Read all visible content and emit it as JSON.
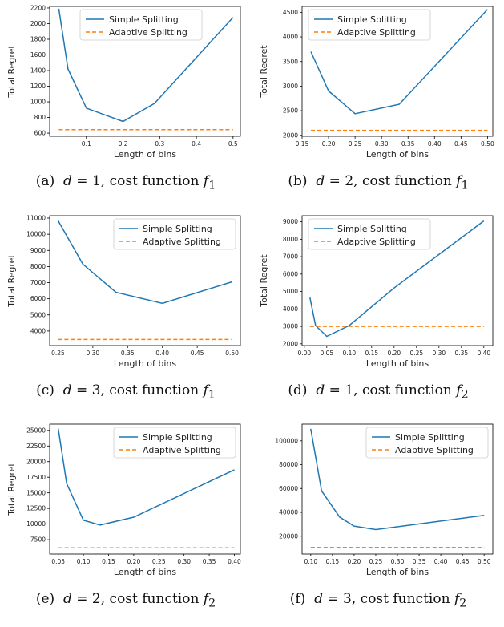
{
  "colors": {
    "simple": "#1f77b4",
    "adaptive": "#ff7f0e"
  },
  "chart_data": [
    {
      "type": "line",
      "caption": {
        "label": "(a)",
        "dim": "d",
        "dim_value": "1",
        "suffix": "cost function",
        "func": "f",
        "func_sub": "1"
      },
      "xlabel": "Length of bins",
      "ylabel": "Total Regret",
      "xlim": [
        0.0,
        0.52
      ],
      "ylim": [
        560,
        2220
      ],
      "xticks": [
        0.1,
        0.2,
        0.3,
        0.4,
        0.5
      ],
      "xtick_labels": [
        "0.1",
        "0.2",
        "0.3",
        "0.4",
        "0.5"
      ],
      "yticks": [
        600,
        800,
        1000,
        1200,
        1400,
        1600,
        1800,
        2000,
        2200
      ],
      "ytick_labels": [
        "600",
        "800",
        "1000",
        "1200",
        "1400",
        "1600",
        "1800",
        "2000",
        "2200"
      ],
      "legend": {
        "position": "top-center",
        "entries": [
          "Simple Splitting",
          "Adaptive Splitting"
        ]
      },
      "series": [
        {
          "name": "Simple Splitting",
          "style": "solid",
          "x": [
            0.025,
            0.05,
            0.1,
            0.2,
            0.2857,
            0.5
          ],
          "y": [
            2190,
            1420,
            920,
            750,
            980,
            2080
          ]
        },
        {
          "name": "Adaptive Splitting",
          "style": "dashed",
          "x": [
            0.025,
            0.5
          ],
          "y": [
            645,
            645
          ]
        }
      ]
    },
    {
      "type": "line",
      "caption": {
        "label": "(b)",
        "dim": "d",
        "dim_value": "2",
        "suffix": "cost function",
        "func": "f",
        "func_sub": "1"
      },
      "xlabel": "Length of bins",
      "ylabel": "Total Regret",
      "xlim": [
        0.15,
        0.51
      ],
      "ylim": [
        1980,
        4620
      ],
      "xticks": [
        0.15,
        0.2,
        0.25,
        0.3,
        0.35,
        0.4,
        0.45,
        0.5
      ],
      "xtick_labels": [
        "0.15",
        "0.20",
        "0.25",
        "0.30",
        "0.35",
        "0.40",
        "0.45",
        "0.50"
      ],
      "yticks": [
        2000,
        2500,
        3000,
        3500,
        4000,
        4500
      ],
      "ytick_labels": [
        "2000",
        "2500",
        "3000",
        "3500",
        "4000",
        "4500"
      ],
      "legend": {
        "position": "top-left",
        "entries": [
          "Simple Splitting",
          "Adaptive Splitting"
        ]
      },
      "series": [
        {
          "name": "Simple Splitting",
          "style": "solid",
          "x": [
            0.1667,
            0.2,
            0.25,
            0.3333,
            0.5
          ],
          "y": [
            3700,
            2900,
            2440,
            2630,
            4560
          ]
        },
        {
          "name": "Adaptive Splitting",
          "style": "dashed",
          "x": [
            0.1667,
            0.5
          ],
          "y": [
            2100,
            2100
          ]
        }
      ]
    },
    {
      "type": "line",
      "caption": {
        "label": "(c)",
        "dim": "d",
        "dim_value": "3",
        "suffix": "cost function",
        "func": "f",
        "func_sub": "1"
      },
      "xlabel": "Length of bins",
      "ylabel": "Total Regret",
      "xlim": [
        0.238,
        0.512
      ],
      "ylim": [
        3100,
        11150
      ],
      "xticks": [
        0.25,
        0.3,
        0.35,
        0.4,
        0.45,
        0.5
      ],
      "xtick_labels": [
        "0.25",
        "0.30",
        "0.35",
        "0.40",
        "0.45",
        "0.50"
      ],
      "yticks": [
        4000,
        5000,
        6000,
        7000,
        8000,
        9000,
        10000,
        11000
      ],
      "ytick_labels": [
        "4000",
        "5000",
        "6000",
        "7000",
        "8000",
        "9000",
        "10000",
        "11000"
      ],
      "legend": {
        "position": "top-right",
        "entries": [
          "Simple Splitting",
          "Adaptive Splitting"
        ]
      },
      "series": [
        {
          "name": "Simple Splitting",
          "style": "solid",
          "x": [
            0.25,
            0.2857,
            0.3333,
            0.4,
            0.5
          ],
          "y": [
            10850,
            8150,
            6400,
            5720,
            7050
          ]
        },
        {
          "name": "Adaptive Splitting",
          "style": "dashed",
          "x": [
            0.25,
            0.5
          ],
          "y": [
            3480,
            3480
          ]
        }
      ]
    },
    {
      "type": "line",
      "caption": {
        "label": "(d)",
        "dim": "d",
        "dim_value": "1",
        "suffix": "cost function",
        "func": "f",
        "func_sub": "2"
      },
      "xlabel": "Length of bins",
      "ylabel": "Total Regret",
      "xlim": [
        -0.005,
        0.42
      ],
      "ylim": [
        1900,
        9350
      ],
      "xticks": [
        0.0,
        0.05,
        0.1,
        0.15,
        0.2,
        0.25,
        0.3,
        0.35,
        0.4
      ],
      "xtick_labels": [
        "0.00",
        "0.05",
        "0.10",
        "0.15",
        "0.20",
        "0.25",
        "0.30",
        "0.35",
        "0.40"
      ],
      "yticks": [
        2000,
        3000,
        4000,
        5000,
        6000,
        7000,
        8000,
        9000
      ],
      "ytick_labels": [
        "2000",
        "3000",
        "4000",
        "5000",
        "6000",
        "7000",
        "8000",
        "9000"
      ],
      "legend": {
        "position": "top-left",
        "entries": [
          "Simple Splitting",
          "Adaptive Splitting"
        ]
      },
      "series": [
        {
          "name": "Simple Splitting",
          "style": "solid",
          "x": [
            0.0125,
            0.025,
            0.05,
            0.1,
            0.2,
            0.4
          ],
          "y": [
            4650,
            3050,
            2430,
            3050,
            5200,
            9050
          ]
        },
        {
          "name": "Adaptive Splitting",
          "style": "dashed",
          "x": [
            0.0125,
            0.4
          ],
          "y": [
            3000,
            3000
          ]
        }
      ]
    },
    {
      "type": "line",
      "caption": {
        "label": "(e)",
        "dim": "d",
        "dim_value": "2",
        "suffix": "cost function",
        "func": "f",
        "func_sub": "2"
      },
      "xlabel": "Length of bins",
      "ylabel": "Total Regret",
      "xlim": [
        0.033,
        0.412
      ],
      "ylim": [
        5200,
        26000
      ],
      "xticks": [
        0.05,
        0.1,
        0.15,
        0.2,
        0.25,
        0.3,
        0.35,
        0.4
      ],
      "xtick_labels": [
        "0.05",
        "0.10",
        "0.15",
        "0.20",
        "0.25",
        "0.30",
        "0.35",
        "0.40"
      ],
      "yticks": [
        7500,
        10000,
        12500,
        15000,
        17500,
        20000,
        22500,
        25000
      ],
      "ytick_labels": [
        "7500",
        "10000",
        "12500",
        "15000",
        "17500",
        "20000",
        "22500",
        "25000"
      ],
      "legend": {
        "position": "top-right",
        "entries": [
          "Simple Splitting",
          "Adaptive Splitting"
        ]
      },
      "series": [
        {
          "name": "Simple Splitting",
          "style": "solid",
          "x": [
            0.05,
            0.0667,
            0.1,
            0.1333,
            0.2,
            0.4
          ],
          "y": [
            25300,
            16500,
            10600,
            9850,
            11100,
            18700
          ]
        },
        {
          "name": "Adaptive Splitting",
          "style": "dashed",
          "x": [
            0.05,
            0.4
          ],
          "y": [
            6200,
            6200
          ]
        }
      ]
    },
    {
      "type": "line",
      "caption": {
        "label": "(f)",
        "dim": "d",
        "dim_value": "3",
        "suffix": "cost function",
        "func": "f",
        "func_sub": "2"
      },
      "xlabel": "Length of bins",
      "ylabel": "",
      "xlim": [
        0.08,
        0.52
      ],
      "ylim": [
        5000,
        114000
      ],
      "xticks": [
        0.1,
        0.15,
        0.2,
        0.25,
        0.3,
        0.35,
        0.4,
        0.45,
        0.5
      ],
      "xtick_labels": [
        "0.10",
        "0.15",
        "0.20",
        "0.25",
        "0.30",
        "0.35",
        "0.40",
        "0.45",
        "0.50"
      ],
      "yticks": [
        20000,
        40000,
        60000,
        80000,
        100000
      ],
      "ytick_labels": [
        "20000",
        "40000",
        "60000",
        "80000",
        "100000"
      ],
      "legend": {
        "position": "top-right",
        "entries": [
          "Simple Splitting",
          "Adaptive Splitting"
        ]
      },
      "series": [
        {
          "name": "Simple Splitting",
          "style": "solid",
          "x": [
            0.1,
            0.125,
            0.1667,
            0.2,
            0.25,
            0.5
          ],
          "y": [
            110000,
            58000,
            36000,
            28500,
            25500,
            37500
          ]
        },
        {
          "name": "Adaptive Splitting",
          "style": "dashed",
          "x": [
            0.1,
            0.5
          ],
          "y": [
            10500,
            10500
          ]
        }
      ]
    }
  ]
}
